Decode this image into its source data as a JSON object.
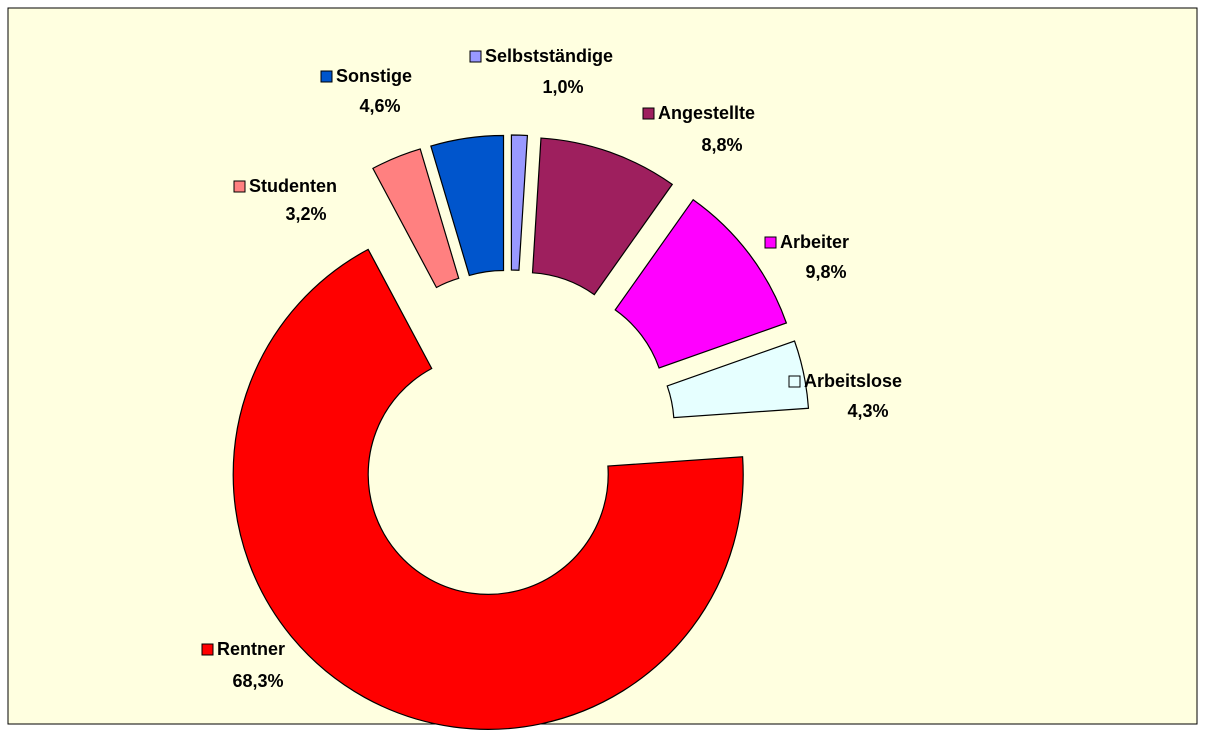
{
  "chart_data": {
    "type": "donut",
    "categories": [
      "Selbstständige",
      "Angestellte",
      "Arbeiter",
      "Arbeitslose",
      "Rentner",
      "Studenten",
      "Sonstige"
    ],
    "values": [
      1.0,
      8.8,
      9.8,
      4.3,
      68.3,
      3.2,
      4.6
    ],
    "value_labels": [
      "1,0%",
      "8,8%",
      "9,8%",
      "4,3%",
      "68,3%",
      "3,2%",
      "4,6%"
    ],
    "colors": [
      "#9999FF",
      "#9E1F5E",
      "#FF00FF",
      "#E6FFFF",
      "#FF0000",
      "#FF8080",
      "#0055CC"
    ]
  }
}
